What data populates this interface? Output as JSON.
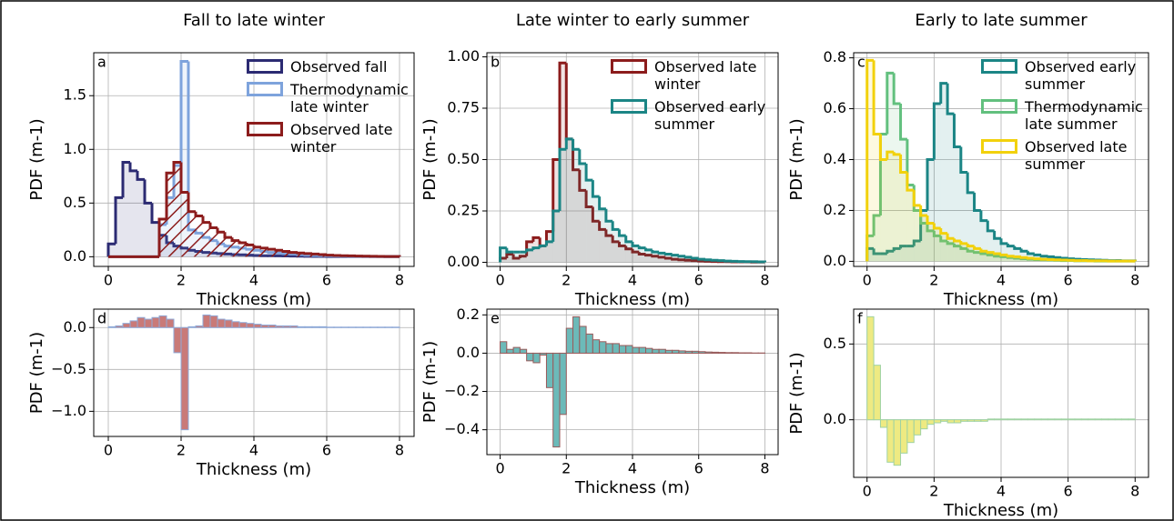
{
  "chart_data": [
    {
      "type": "histogram",
      "title": "Fall to late winter",
      "panel_label": "a",
      "xlabel": "Thickness (m)",
      "ylabel": "PDF (m-1)",
      "legend": "upper right",
      "grid": true,
      "bins": [
        0,
        0.2,
        0.4,
        0.6,
        0.8,
        1,
        1.2,
        1.4,
        1.6,
        1.8,
        2,
        2.2,
        2.4,
        2.6,
        2.8,
        3,
        3.2,
        3.4,
        3.6,
        3.8,
        4,
        4.2,
        4.4,
        4.6,
        4.8,
        5,
        5.2,
        5.4,
        5.6,
        5.8,
        6,
        6.2,
        6.4,
        6.6,
        6.8,
        7,
        7.2,
        7.4,
        7.6,
        7.8,
        8
      ],
      "xlim": [
        -0.4,
        8.4
      ],
      "xticks": [
        0,
        2,
        4,
        6,
        8
      ],
      "ylim": [
        -0.09,
        1.9
      ],
      "yticks": [
        {
          "value": 0,
          "label": "0.0"
        },
        {
          "value": 0.5,
          "label": "0.5"
        },
        {
          "value": 1,
          "label": "1.0"
        },
        {
          "value": 1.5,
          "label": "1.5"
        }
      ],
      "series": [
        {
          "name": "Observed fall",
          "color": "#2b2a72",
          "hatch": false,
          "values": [
            0.12,
            0.55,
            0.88,
            0.8,
            0.72,
            0.5,
            0.32,
            0.2,
            0.13,
            0.1,
            0.08,
            0.06,
            0.05,
            0.04,
            0.035,
            0.03,
            0.025,
            0.02,
            0.018,
            0.015,
            0.012,
            0.01,
            0.009,
            0.008,
            0.007,
            0.006,
            0.005,
            0.004,
            0.003,
            0.003,
            0.002,
            0.002,
            0.002,
            0.002,
            0.002,
            0.002,
            0.002,
            0.002,
            0.002,
            0.002
          ]
        },
        {
          "name": "Thermodynamic late winter",
          "color": "#7ea3dc",
          "hatch": false,
          "values": [
            0,
            0,
            0,
            0,
            0,
            0,
            0,
            0.3,
            0.55,
            0.85,
            1.82,
            0.25,
            0.22,
            0.18,
            0.15,
            0.12,
            0.1,
            0.09,
            0.08,
            0.07,
            0.06,
            0.05,
            0.04,
            0.035,
            0.03,
            0.025,
            0.02,
            0.015,
            0.012,
            0.01,
            0.008,
            0.006,
            0.005,
            0.004,
            0.003,
            0.003,
            0.002,
            0.002,
            0.001,
            0.001
          ]
        },
        {
          "name": "Observed late winter",
          "color": "#8c1c1c",
          "hatch": true,
          "values": [
            0,
            0,
            0,
            0,
            0,
            0,
            0,
            0.35,
            0.78,
            0.88,
            0.6,
            0.42,
            0.38,
            0.32,
            0.27,
            0.23,
            0.18,
            0.15,
            0.13,
            0.11,
            0.09,
            0.08,
            0.07,
            0.06,
            0.05,
            0.04,
            0.035,
            0.03,
            0.025,
            0.02,
            0.015,
            0.012,
            0.01,
            0.008,
            0.006,
            0.005,
            0.004,
            0.003,
            0.002,
            0.002
          ]
        }
      ]
    },
    {
      "type": "histogram",
      "title": "Late winter to early summer",
      "panel_label": "b",
      "xlabel": "Thickness (m)",
      "ylabel": "PDF (m-1)",
      "legend": "upper right",
      "grid": true,
      "bins": [
        0,
        0.2,
        0.4,
        0.6,
        0.8,
        1,
        1.2,
        1.4,
        1.6,
        1.8,
        2,
        2.2,
        2.4,
        2.6,
        2.8,
        3,
        3.2,
        3.4,
        3.6,
        3.8,
        4,
        4.2,
        4.4,
        4.6,
        4.8,
        5,
        5.2,
        5.4,
        5.6,
        5.8,
        6,
        6.2,
        6.4,
        6.6,
        6.8,
        7,
        7.2,
        7.4,
        7.6,
        7.8,
        8
      ],
      "xlim": [
        -0.4,
        8.4
      ],
      "xticks": [
        0,
        2,
        4,
        6,
        8
      ],
      "ylim": [
        -0.02,
        1.02
      ],
      "yticks": [
        {
          "value": 0,
          "label": "0.00"
        },
        {
          "value": 0.25,
          "label": "0.25"
        },
        {
          "value": 0.5,
          "label": "0.50"
        },
        {
          "value": 0.75,
          "label": "0.75"
        },
        {
          "value": 1,
          "label": "1.00"
        }
      ],
      "series": [
        {
          "name": "Observed late winter",
          "color": "#8c1c1c",
          "hatch": false,
          "values": [
            0.02,
            0.04,
            0.02,
            0.03,
            0.1,
            0.12,
            0.08,
            0.15,
            0.5,
            0.97,
            0.6,
            0.45,
            0.35,
            0.27,
            0.2,
            0.16,
            0.13,
            0.1,
            0.08,
            0.065,
            0.05,
            0.04,
            0.035,
            0.03,
            0.025,
            0.02,
            0.015,
            0.012,
            0.01,
            0.008,
            0.006,
            0.005,
            0.004,
            0.003,
            0.003,
            0.002,
            0.002,
            0.002,
            0.001,
            0.001
          ]
        },
        {
          "name": "Observed early summer",
          "color": "#1b8585",
          "hatch": false,
          "values": [
            0.07,
            0.05,
            0.05,
            0.05,
            0.06,
            0.07,
            0.08,
            0.1,
            0.25,
            0.55,
            0.6,
            0.55,
            0.48,
            0.4,
            0.32,
            0.26,
            0.2,
            0.16,
            0.13,
            0.1,
            0.08,
            0.07,
            0.06,
            0.05,
            0.045,
            0.04,
            0.035,
            0.03,
            0.025,
            0.02,
            0.015,
            0.012,
            0.01,
            0.008,
            0.006,
            0.005,
            0.004,
            0.003,
            0.003,
            0.002
          ]
        }
      ]
    },
    {
      "type": "histogram",
      "title": "Early to late summer",
      "panel_label": "c",
      "xlabel": "Thickness (m)",
      "ylabel": "PDF (m-1)",
      "legend": "upper right",
      "grid": true,
      "bins": [
        0,
        0.2,
        0.4,
        0.6,
        0.8,
        1,
        1.2,
        1.4,
        1.6,
        1.8,
        2,
        2.2,
        2.4,
        2.6,
        2.8,
        3,
        3.2,
        3.4,
        3.6,
        3.8,
        4,
        4.2,
        4.4,
        4.6,
        4.8,
        5,
        5.2,
        5.4,
        5.6,
        5.8,
        6,
        6.2,
        6.4,
        6.6,
        6.8,
        7,
        7.2,
        7.4,
        7.6,
        7.8,
        8
      ],
      "xlim": [
        -0.4,
        8.4
      ],
      "xticks": [
        0,
        2,
        4,
        6,
        8
      ],
      "ylim": [
        -0.02,
        0.82
      ],
      "yticks": [
        {
          "value": 0,
          "label": "0.0"
        },
        0.2,
        0.4,
        0.6,
        0.8
      ],
      "series": [
        {
          "name": "Observed early summer",
          "color": "#1b8585",
          "hatch": false,
          "values": [
            0.05,
            0.03,
            0.03,
            0.04,
            0.05,
            0.06,
            0.06,
            0.08,
            0.2,
            0.4,
            0.62,
            0.7,
            0.58,
            0.45,
            0.35,
            0.27,
            0.2,
            0.16,
            0.12,
            0.09,
            0.07,
            0.06,
            0.05,
            0.04,
            0.03,
            0.025,
            0.02,
            0.018,
            0.015,
            0.012,
            0.01,
            0.008,
            0.007,
            0.006,
            0.005,
            0.004,
            0.003,
            0.003,
            0.002,
            0.002
          ]
        },
        {
          "name": "Thermodynamic late summer",
          "color": "#62c07e",
          "hatch": false,
          "values": [
            0.1,
            0.18,
            0.5,
            0.74,
            0.62,
            0.48,
            0.3,
            0.2,
            0.15,
            0.12,
            0.1,
            0.08,
            0.07,
            0.06,
            0.05,
            0.04,
            0.035,
            0.03,
            0.025,
            0.02,
            0.018,
            0.015,
            0.012,
            0.01,
            0.008,
            0.007,
            0.006,
            0.005,
            0.004,
            0.003,
            0.003,
            0.002,
            0.002,
            0.002,
            0.001,
            0.001,
            0.001,
            0.001,
            0.001,
            0.001
          ]
        },
        {
          "name": "Observed late summer",
          "color": "#f2d10c",
          "hatch": false,
          "values": [
            0.79,
            0.5,
            0.4,
            0.43,
            0.42,
            0.35,
            0.28,
            0.22,
            0.18,
            0.15,
            0.13,
            0.11,
            0.09,
            0.08,
            0.07,
            0.06,
            0.05,
            0.04,
            0.035,
            0.03,
            0.025,
            0.02,
            0.018,
            0.015,
            0.012,
            0.01,
            0.008,
            0.007,
            0.006,
            0.005,
            0.004,
            0.003,
            0.003,
            0.002,
            0.002,
            0.002,
            0.001,
            0.001,
            0.001,
            0.001
          ]
        }
      ]
    },
    {
      "type": "bar_histogram",
      "panel_label": "d",
      "xlabel": "Thickness (m)",
      "ylabel": "PDF (m-1)",
      "grid": true,
      "color": "#c97a78",
      "edgecolor": "#8ea9d8",
      "bins": [
        0,
        0.2,
        0.4,
        0.6,
        0.8,
        1,
        1.2,
        1.4,
        1.6,
        1.8,
        2,
        2.2,
        2.4,
        2.6,
        2.8,
        3,
        3.2,
        3.4,
        3.6,
        3.8,
        4,
        4.2,
        4.4,
        4.6,
        4.8,
        5,
        5.2,
        5.4,
        5.6,
        5.8,
        6,
        6.2,
        6.4,
        6.6,
        6.8,
        7,
        7.2,
        7.4,
        7.6,
        7.8,
        8
      ],
      "xlim": [
        -0.4,
        8.4
      ],
      "xticks": [
        0,
        2,
        4,
        6,
        8
      ],
      "ylim": [
        -1.3,
        0.22
      ],
      "yticks": [
        {
          "value": -1,
          "label": "−1.0"
        },
        {
          "value": -0.5,
          "label": "−0.5"
        },
        {
          "value": 0,
          "label": "0.0"
        }
      ],
      "values": [
        0.01,
        0.02,
        0.05,
        0.08,
        0.12,
        0.1,
        0.12,
        0.14,
        0.1,
        -0.3,
        -1.22,
        0.01,
        0.02,
        0.15,
        0.14,
        0.1,
        0.09,
        0.07,
        0.06,
        0.05,
        0.04,
        0.03,
        0.03,
        0.02,
        0.02,
        0.02,
        0.01,
        0.01,
        0.01,
        0.01,
        0.005,
        0.005,
        0.005,
        0.005,
        0.005,
        0.005,
        0.005,
        0.005,
        0.005,
        0.005
      ]
    },
    {
      "type": "bar_histogram",
      "panel_label": "e",
      "xlabel": "Thickness (m)",
      "ylabel": "PDF (m-1)",
      "grid": true,
      "color": "#6cbab9",
      "edgecolor": "#9a5a5a",
      "bins": [
        0,
        0.2,
        0.4,
        0.6,
        0.8,
        1,
        1.2,
        1.4,
        1.6,
        1.8,
        2,
        2.2,
        2.4,
        2.6,
        2.8,
        3,
        3.2,
        3.4,
        3.6,
        3.8,
        4,
        4.2,
        4.4,
        4.6,
        4.8,
        5,
        5.2,
        5.4,
        5.6,
        5.8,
        6,
        6.2,
        6.4,
        6.6,
        6.8,
        7,
        7.2,
        7.4,
        7.6,
        7.8,
        8
      ],
      "xlim": [
        -0.4,
        8.4
      ],
      "xticks": [
        0,
        2,
        4,
        6,
        8
      ],
      "ylim": [
        -0.53,
        0.23
      ],
      "yticks": [
        {
          "value": -0.4,
          "label": "−0.4"
        },
        {
          "value": -0.2,
          "label": "−0.2"
        },
        {
          "value": 0,
          "label": "0.0"
        },
        0.2
      ],
      "values": [
        0.06,
        0.02,
        0.03,
        0.02,
        -0.04,
        -0.05,
        -0.01,
        -0.18,
        -0.49,
        -0.32,
        0.13,
        0.19,
        0.14,
        0.1,
        0.07,
        0.06,
        0.05,
        0.05,
        0.04,
        0.04,
        0.03,
        0.03,
        0.025,
        0.02,
        0.02,
        0.015,
        0.015,
        0.012,
        0.01,
        0.01,
        0.008,
        0.006,
        0.005,
        0.004,
        0.003,
        0.003,
        0.002,
        0.002,
        0.001,
        0.001
      ]
    },
    {
      "type": "bar_histogram",
      "panel_label": "f",
      "xlabel": "Thickness (m)",
      "ylabel": "PDF (m-1)",
      "grid": true,
      "color": "#eeea82",
      "edgecolor": "#9fd2a2",
      "bins": [
        0,
        0.2,
        0.4,
        0.6,
        0.8,
        1,
        1.2,
        1.4,
        1.6,
        1.8,
        2,
        2.2,
        2.4,
        2.6,
        2.8,
        3,
        3.2,
        3.4,
        3.6,
        3.8,
        4,
        4.2,
        4.4,
        4.6,
        4.8,
        5,
        5.2,
        5.4,
        5.6,
        5.8,
        6,
        6.2,
        6.4,
        6.6,
        6.8,
        7,
        7.2,
        7.4,
        7.6,
        7.8,
        8
      ],
      "xlim": [
        -0.4,
        8.4
      ],
      "xticks": [
        0,
        2,
        4,
        6,
        8
      ],
      "ylim": [
        -0.38,
        0.73
      ],
      "yticks": [
        {
          "value": 0,
          "label": "0.0"
        },
        0.5
      ],
      "values": [
        0.68,
        0.36,
        -0.05,
        -0.28,
        -0.3,
        -0.22,
        -0.15,
        -0.1,
        -0.06,
        -0.03,
        -0.02,
        -0.01,
        -0.02,
        -0.02,
        -0.01,
        -0.01,
        -0.01,
        -0.01,
        0.005,
        0.005,
        0.005,
        0.005,
        0.005,
        0.005,
        0.005,
        0.005,
        0.005,
        0.005,
        0.005,
        0.005,
        0.005,
        0.005,
        0.005,
        0.005,
        0.005,
        0.005,
        0.005,
        0.005,
        0.005,
        0.005
      ]
    }
  ]
}
